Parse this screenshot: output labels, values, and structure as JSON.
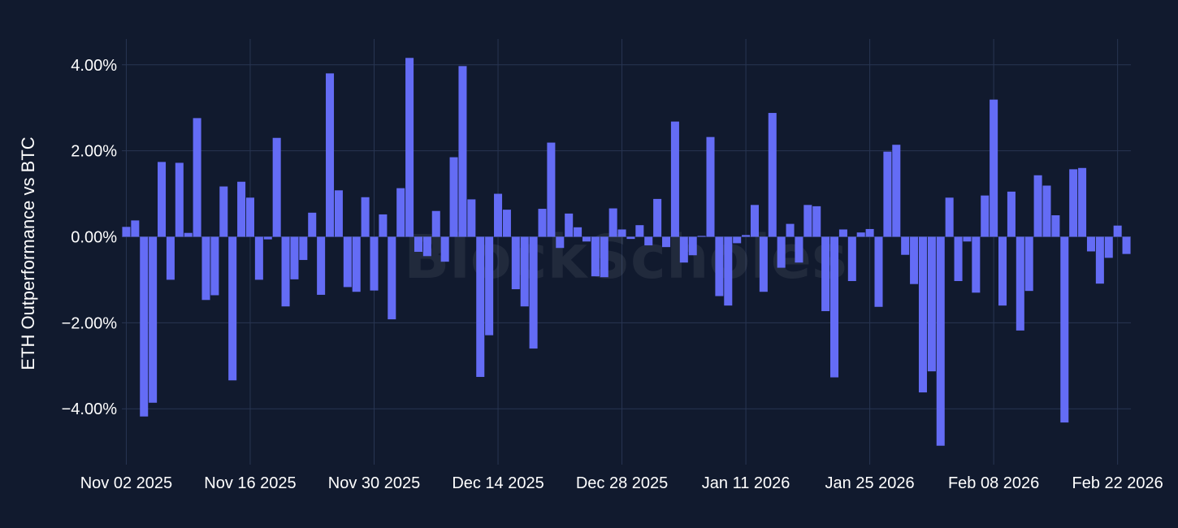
{
  "chart_data": {
    "type": "bar",
    "title": "",
    "xlabel": "",
    "ylabel": "ETH Outperformance vs BTC",
    "watermark": "BlockScholes",
    "ylim": [
      -5.3,
      4.6
    ],
    "yticks": [
      -4,
      -2,
      0,
      2,
      4
    ],
    "ytick_labels": [
      "−4.00%",
      "−2.00%",
      "0.00%",
      "2.00%",
      "4.00%"
    ],
    "xticks": [
      "2025-11-02",
      "2025-11-16",
      "2025-11-30",
      "2025-12-14",
      "2025-12-28",
      "2026-01-11",
      "2026-01-25",
      "2026-02-08",
      "2026-02-22"
    ],
    "xtick_labels": [
      "Nov 02 2025",
      "Nov 16 2025",
      "Nov 30 2025",
      "Dec 14 2025",
      "Dec 28 2025",
      "Jan 11 2026",
      "Jan 25 2026",
      "Feb 08 2026",
      "Feb 22 2026"
    ],
    "x_start": "2025-11-02",
    "x": [
      "2025-11-02",
      "2025-11-03",
      "2025-11-04",
      "2025-11-05",
      "2025-11-06",
      "2025-11-07",
      "2025-11-08",
      "2025-11-09",
      "2025-11-10",
      "2025-11-11",
      "2025-11-12",
      "2025-11-13",
      "2025-11-14",
      "2025-11-15",
      "2025-11-16",
      "2025-11-17",
      "2025-11-18",
      "2025-11-19",
      "2025-11-20",
      "2025-11-21",
      "2025-11-22",
      "2025-11-23",
      "2025-11-24",
      "2025-11-25",
      "2025-11-26",
      "2025-11-27",
      "2025-11-28",
      "2025-11-29",
      "2025-11-30",
      "2025-12-01",
      "2025-12-02",
      "2025-12-03",
      "2025-12-04",
      "2025-12-05",
      "2025-12-06",
      "2025-12-07",
      "2025-12-08",
      "2025-12-09",
      "2025-12-10",
      "2025-12-11",
      "2025-12-12",
      "2025-12-13",
      "2025-12-14",
      "2025-12-15",
      "2025-12-16",
      "2025-12-17",
      "2025-12-18",
      "2025-12-19",
      "2025-12-20",
      "2025-12-21",
      "2025-12-22",
      "2025-12-23",
      "2025-12-24",
      "2025-12-25",
      "2025-12-26",
      "2025-12-27",
      "2025-12-28",
      "2025-12-29",
      "2025-12-30",
      "2025-12-31",
      "2026-01-01",
      "2026-01-02",
      "2026-01-03",
      "2026-01-04",
      "2026-01-05",
      "2026-01-06",
      "2026-01-07",
      "2026-01-08",
      "2026-01-09",
      "2026-01-10",
      "2026-01-11",
      "2026-01-12",
      "2026-01-13",
      "2026-01-14",
      "2026-01-15",
      "2026-01-16",
      "2026-01-17",
      "2026-01-18",
      "2026-01-19",
      "2026-01-20",
      "2026-01-21",
      "2026-01-22",
      "2026-01-23",
      "2026-01-24",
      "2026-01-25",
      "2026-01-26",
      "2026-01-27",
      "2026-01-28",
      "2026-01-29",
      "2026-01-30",
      "2026-01-31",
      "2026-02-01",
      "2026-02-02",
      "2026-02-03",
      "2026-02-04",
      "2026-02-05",
      "2026-02-06",
      "2026-02-07",
      "2026-02-08",
      "2026-02-09",
      "2026-02-10",
      "2026-02-11",
      "2026-02-12",
      "2026-02-13",
      "2026-02-14",
      "2026-02-15",
      "2026-02-16",
      "2026-02-17",
      "2026-02-18",
      "2026-02-19",
      "2026-02-20",
      "2026-02-21",
      "2026-02-22",
      "2026-02-23"
    ],
    "values": [
      0.23,
      0.38,
      -4.18,
      -3.86,
      1.74,
      -1.0,
      1.72,
      0.09,
      2.76,
      -1.47,
      -1.36,
      1.17,
      -3.34,
      1.28,
      0.91,
      -1.0,
      -0.06,
      2.3,
      -1.62,
      -0.99,
      -0.54,
      0.56,
      -1.35,
      3.8,
      1.08,
      -1.17,
      -1.28,
      0.92,
      -1.25,
      0.52,
      -1.92,
      1.13,
      4.16,
      -0.35,
      -0.45,
      0.6,
      -0.58,
      1.85,
      3.97,
      0.87,
      -3.26,
      -2.29,
      1.0,
      0.63,
      -1.22,
      -1.62,
      -2.6,
      0.65,
      2.19,
      -0.26,
      0.54,
      0.22,
      -0.11,
      -0.92,
      -0.94,
      0.66,
      0.17,
      -0.05,
      0.27,
      -0.2,
      0.88,
      -0.24,
      2.68,
      -0.6,
      -0.43,
      0.02,
      2.32,
      -1.38,
      -1.6,
      -0.15,
      0.04,
      0.74,
      -1.28,
      2.88,
      -0.72,
      0.3,
      -0.6,
      0.74,
      0.71,
      -1.73,
      -3.27,
      0.17,
      -1.03,
      0.1,
      0.18,
      -1.63,
      1.98,
      2.14,
      -0.42,
      -1.1,
      -3.62,
      -3.13,
      -4.86,
      0.91,
      -1.03,
      -0.11,
      -1.3,
      0.96,
      3.19,
      -1.6,
      1.05,
      -2.18,
      -1.26,
      1.43,
      1.19,
      0.5,
      -4.32,
      1.57,
      1.6,
      -0.34,
      -1.09,
      -0.49,
      0.26,
      -0.4
    ],
    "grid": true,
    "legend": "none",
    "colors": {
      "bar": "#646cf5",
      "background": "#111a2e",
      "grid": "#283552",
      "text": "#ffffff"
    }
  }
}
